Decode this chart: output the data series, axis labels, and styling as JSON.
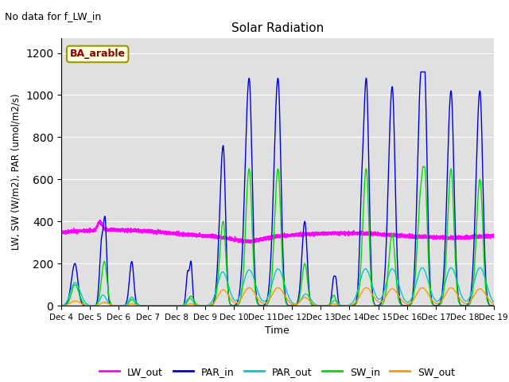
{
  "title": "Solar Radiation",
  "subtitle": "No data for f_LW_in",
  "xlabel": "Time",
  "ylabel": "LW, SW (W/m2), PAR (umol/m2/s)",
  "site_label": "BA_arable",
  "ylim": [
    0,
    1270
  ],
  "yticks": [
    0,
    200,
    400,
    600,
    800,
    1000,
    1200
  ],
  "background_color": "#e0e0e0",
  "line_colors": {
    "LW_out": "#ff00ff",
    "PAR_in": "#0000dd",
    "PAR_out": "#00cccc",
    "SW_in": "#00dd00",
    "SW_out": "#ff9900"
  },
  "x_start": 4.0,
  "x_end": 19.0,
  "xtick_positions": [
    4,
    5,
    6,
    7,
    8,
    9,
    10,
    11,
    12,
    13,
    14,
    15,
    16,
    17,
    18,
    19
  ],
  "xtick_labels": [
    "Dec 4",
    "Dec 5",
    "Dec 6",
    "Dec 7",
    "Dec 8",
    "Dec 9",
    "Dec 10",
    "Dec 11",
    "Dec 12",
    "Dec 13",
    "Dec 14",
    "Dec 15",
    "Dec 16",
    "Dec 17",
    "Dec 18",
    "Dec 19"
  ]
}
